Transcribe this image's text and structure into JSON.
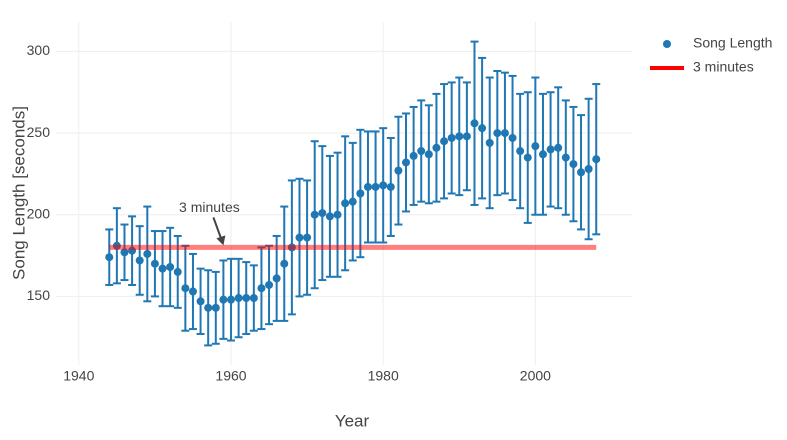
{
  "chart_data": {
    "type": "scatter",
    "x_label": "Year",
    "y_label": "Song Length [seconds]",
    "xlim": [
      1937,
      2012.7
    ],
    "ylim": [
      108,
      318
    ],
    "xticks": [
      1940,
      1960,
      1980,
      2000
    ],
    "yticks": [
      150,
      200,
      250,
      300
    ],
    "grid": true,
    "legend": "top-right",
    "series": [
      {
        "name": "Song Length",
        "color": "#1f77b4",
        "mode": "markers",
        "x": [
          1944,
          1945,
          1946,
          1947,
          1948,
          1949,
          1950,
          1951,
          1952,
          1953,
          1954,
          1955,
          1956,
          1957,
          1958,
          1959,
          1960,
          1961,
          1962,
          1963,
          1964,
          1965,
          1966,
          1967,
          1968,
          1969,
          1970,
          1971,
          1972,
          1973,
          1974,
          1975,
          1976,
          1977,
          1978,
          1979,
          1980,
          1981,
          1982,
          1983,
          1984,
          1985,
          1986,
          1987,
          1988,
          1989,
          1990,
          1991,
          1992,
          1993,
          1994,
          1995,
          1996,
          1997,
          1998,
          1999,
          2000,
          2001,
          2002,
          2003,
          2004,
          2005,
          2006,
          2007,
          2008
        ],
        "values": [
          174,
          181,
          177,
          178,
          172,
          176,
          170,
          167,
          168,
          165,
          155,
          153,
          147,
          143,
          143,
          148,
          148,
          149,
          149,
          149,
          155,
          157,
          161,
          170,
          180,
          186,
          186,
          200,
          201,
          199,
          200,
          207,
          208,
          213,
          217,
          217,
          218,
          217,
          227,
          232,
          236,
          239,
          237,
          241,
          245,
          247,
          248,
          248,
          256,
          253,
          244,
          250,
          250,
          247,
          239,
          235,
          242,
          237,
          240,
          241,
          235,
          231,
          226,
          228,
          234
        ],
        "errors": [
          17,
          23,
          17,
          21,
          21,
          29,
          20,
          23,
          24,
          22,
          26,
          23,
          20,
          23,
          22,
          24,
          25,
          24,
          22,
          20,
          25,
          24,
          26,
          35,
          41,
          36,
          35,
          45,
          41,
          37,
          38,
          41,
          36,
          39,
          34,
          34,
          35,
          30,
          33,
          30,
          30,
          31,
          30,
          33,
          35,
          34,
          36,
          33,
          50,
          43,
          40,
          38,
          37,
          38,
          35,
          40,
          42,
          37,
          35,
          37,
          35,
          35,
          35,
          43,
          46
        ]
      },
      {
        "name": "3 minutes",
        "color": "#ff0000",
        "mode": "line",
        "opacity": 0.5,
        "x": [
          1944,
          2008
        ],
        "values": [
          180,
          180
        ]
      }
    ],
    "annotations": [
      {
        "text": "3 minutes",
        "x": 1959,
        "y": 180
      }
    ]
  }
}
